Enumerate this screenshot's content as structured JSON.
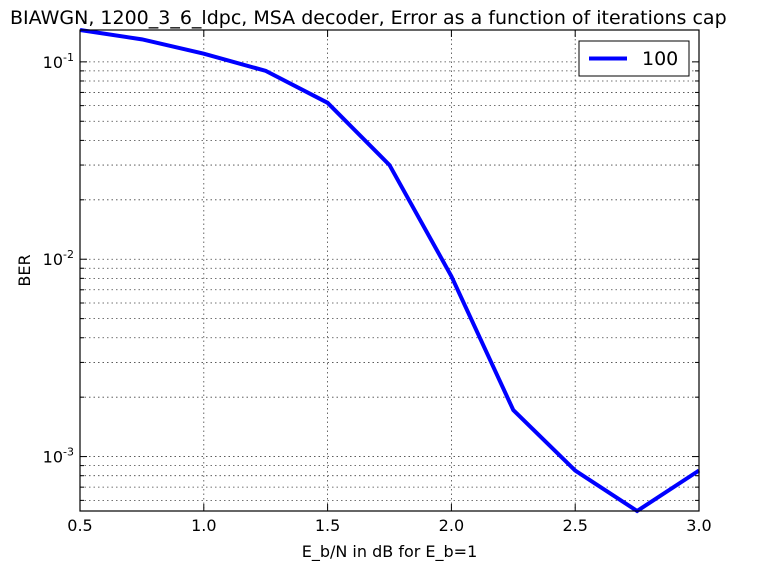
{
  "chart_data": {
    "type": "line",
    "title": "BIAWGN, 1200_3_6_ldpc, MSA decoder, Error as a function of iterations cap",
    "xlabel": "E_b/N in dB for E_b=1",
    "ylabel": "BER",
    "xlim": [
      0.5,
      3.0
    ],
    "ylim": [
      0.00053,
      0.145
    ],
    "yscale": "log",
    "grid": true,
    "legend_position": "top-right",
    "x_ticks": [
      "0.5",
      "1.0",
      "1.5",
      "2.0",
      "2.5",
      "3.0"
    ],
    "y_ticks": [
      {
        "base": "10",
        "exp": "-3",
        "value": 0.001
      },
      {
        "base": "10",
        "exp": "-2",
        "value": 0.01
      },
      {
        "base": "10",
        "exp": "-1",
        "value": 0.1
      }
    ],
    "series": [
      {
        "name": "100",
        "color": "#0000ff",
        "x": [
          0.5,
          0.75,
          1.0,
          1.25,
          1.5,
          1.75,
          2.0,
          2.25,
          2.5,
          2.75,
          3.0
        ],
        "y": [
          0.145,
          0.13,
          0.11,
          0.09,
          0.062,
          0.03,
          0.0082,
          0.00172,
          0.00085,
          0.00053,
          0.00085
        ]
      }
    ]
  }
}
